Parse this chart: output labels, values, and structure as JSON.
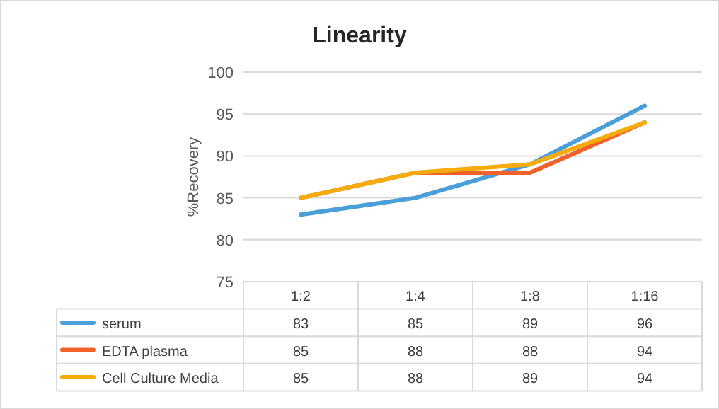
{
  "chart_data": {
    "type": "line",
    "title": "Linearity",
    "ylabel": "%Recovery",
    "categories": [
      "1:2",
      "1:4",
      "1:8",
      "1:16"
    ],
    "series": [
      {
        "name": "serum",
        "color": "#4a9fd8",
        "values": [
          83,
          85,
          89,
          96
        ]
      },
      {
        "name": "EDTA plasma",
        "color": "#f0622a",
        "values": [
          85,
          88,
          88,
          94
        ]
      },
      {
        "name": "Cell Culture Media",
        "color": "#f6ac0c",
        "values": [
          85,
          88,
          89,
          94
        ]
      }
    ],
    "ylim": [
      75,
      100
    ],
    "yticks": [
      75,
      80,
      85,
      90,
      95,
      100
    ],
    "grid": "y",
    "legend": "bottom",
    "data_labels": true
  }
}
